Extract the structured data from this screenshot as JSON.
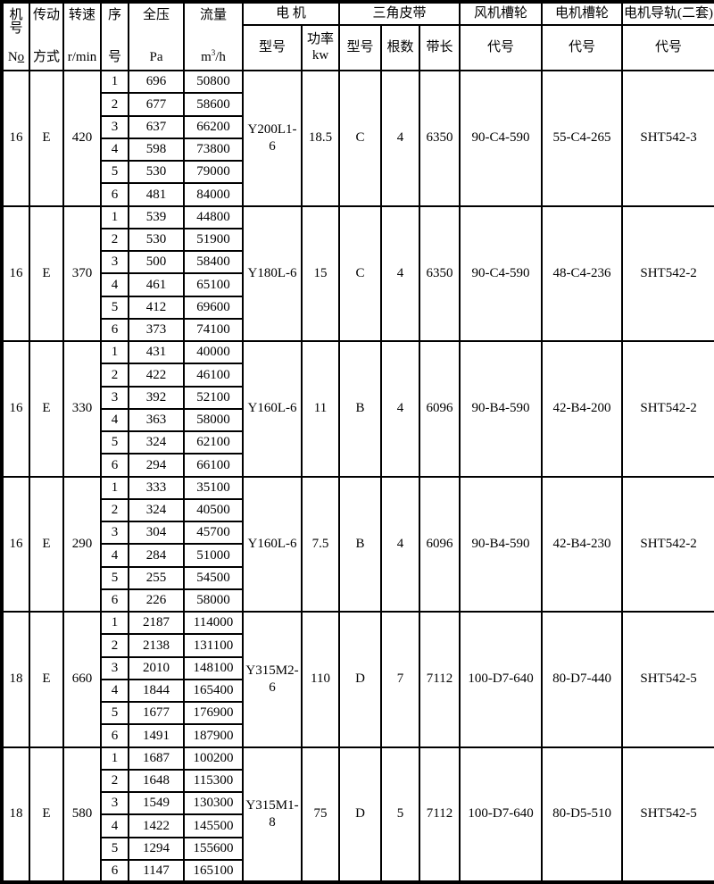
{
  "header": {
    "machine_no": {
      "line1": "机号",
      "line2_n": "N",
      "line2_o": "o"
    },
    "drive": {
      "line1": "传动",
      "line2": "方式"
    },
    "speed": {
      "line1": "转速",
      "line2": "r/min"
    },
    "seq": {
      "line1": "序",
      "line2": "号"
    },
    "pressure": {
      "line1": "全压",
      "line2": "Pa"
    },
    "flow": {
      "line1": "流量",
      "unit_base": "m",
      "unit_sup": "3",
      "unit_rest": "/h"
    },
    "group_motor": "电 机",
    "motor_model": "型号",
    "motor_power_line1": "功率",
    "motor_power_line2": "kw",
    "group_belt": "三角皮带",
    "belt_model": "型号",
    "belt_count": "根数",
    "belt_length": "带长",
    "group_fan_pulley": "风机槽轮",
    "fan_pulley_code": "代号",
    "group_motor_pulley": "电机槽轮",
    "motor_pulley_code": "代号",
    "group_rail": "电机导轨(二套)",
    "rail_code": "代号"
  },
  "blocks": [
    {
      "machine_no": "16",
      "drive": "E",
      "speed": "420",
      "rows": [
        {
          "seq": "1",
          "pressure": "696",
          "flow": "50800"
        },
        {
          "seq": "2",
          "pressure": "677",
          "flow": "58600"
        },
        {
          "seq": "3",
          "pressure": "637",
          "flow": "66200"
        },
        {
          "seq": "4",
          "pressure": "598",
          "flow": "73800"
        },
        {
          "seq": "5",
          "pressure": "530",
          "flow": "79000"
        },
        {
          "seq": "6",
          "pressure": "481",
          "flow": "84000"
        }
      ],
      "motor_model": "Y200L1-6",
      "power": "18.5",
      "belt_model": "C",
      "belt_count": "4",
      "belt_length": "6350",
      "fan_pulley": "90-C4-590",
      "motor_pulley": "55-C4-265",
      "rail": "SHT542-3"
    },
    {
      "machine_no": "16",
      "drive": "E",
      "speed": "370",
      "rows": [
        {
          "seq": "1",
          "pressure": "539",
          "flow": "44800"
        },
        {
          "seq": "2",
          "pressure": "530",
          "flow": "51900"
        },
        {
          "seq": "3",
          "pressure": "500",
          "flow": "58400"
        },
        {
          "seq": "4",
          "pressure": "461",
          "flow": "65100"
        },
        {
          "seq": "5",
          "pressure": "412",
          "flow": "69600"
        },
        {
          "seq": "6",
          "pressure": "373",
          "flow": "74100"
        }
      ],
      "motor_model": "Y180L-6",
      "power": "15",
      "belt_model": "C",
      "belt_count": "4",
      "belt_length": "6350",
      "fan_pulley": "90-C4-590",
      "motor_pulley": "48-C4-236",
      "rail": "SHT542-2"
    },
    {
      "machine_no": "16",
      "drive": "E",
      "speed": "330",
      "rows": [
        {
          "seq": "1",
          "pressure": "431",
          "flow": "40000"
        },
        {
          "seq": "2",
          "pressure": "422",
          "flow": "46100"
        },
        {
          "seq": "3",
          "pressure": "392",
          "flow": "52100"
        },
        {
          "seq": "4",
          "pressure": "363",
          "flow": "58000"
        },
        {
          "seq": "5",
          "pressure": "324",
          "flow": "62100"
        },
        {
          "seq": "6",
          "pressure": "294",
          "flow": "66100"
        }
      ],
      "motor_model": "Y160L-6",
      "power": "11",
      "belt_model": "B",
      "belt_count": "4",
      "belt_length": "6096",
      "fan_pulley": "90-B4-590",
      "motor_pulley": "42-B4-200",
      "rail": "SHT542-2"
    },
    {
      "machine_no": "16",
      "drive": "E",
      "speed": "290",
      "rows": [
        {
          "seq": "1",
          "pressure": "333",
          "flow": "35100"
        },
        {
          "seq": "2",
          "pressure": "324",
          "flow": "40500"
        },
        {
          "seq": "3",
          "pressure": "304",
          "flow": "45700"
        },
        {
          "seq": "4",
          "pressure": "284",
          "flow": "51000"
        },
        {
          "seq": "5",
          "pressure": "255",
          "flow": "54500"
        },
        {
          "seq": "6",
          "pressure": "226",
          "flow": "58000"
        }
      ],
      "motor_model": "Y160L-6",
      "power": "7.5",
      "belt_model": "B",
      "belt_count": "4",
      "belt_length": "6096",
      "fan_pulley": "90-B4-590",
      "motor_pulley": "42-B4-230",
      "rail": "SHT542-2"
    },
    {
      "machine_no": "18",
      "drive": "E",
      "speed": "660",
      "rows": [
        {
          "seq": "1",
          "pressure": "2187",
          "flow": "114000"
        },
        {
          "seq": "2",
          "pressure": "2138",
          "flow": "131100"
        },
        {
          "seq": "3",
          "pressure": "2010",
          "flow": "148100"
        },
        {
          "seq": "4",
          "pressure": "1844",
          "flow": "165400"
        },
        {
          "seq": "5",
          "pressure": "1677",
          "flow": "176900"
        },
        {
          "seq": "6",
          "pressure": "1491",
          "flow": "187900"
        }
      ],
      "motor_model": "Y315M2-6",
      "power": "110",
      "belt_model": "D",
      "belt_count": "7",
      "belt_length": "7112",
      "fan_pulley": "100-D7-640",
      "motor_pulley": "80-D7-440",
      "rail": "SHT542-5"
    },
    {
      "machine_no": "18",
      "drive": "E",
      "speed": "580",
      "rows": [
        {
          "seq": "1",
          "pressure": "1687",
          "flow": "100200"
        },
        {
          "seq": "2",
          "pressure": "1648",
          "flow": "115300"
        },
        {
          "seq": "3",
          "pressure": "1549",
          "flow": "130300"
        },
        {
          "seq": "4",
          "pressure": "1422",
          "flow": "145500"
        },
        {
          "seq": "5",
          "pressure": "1294",
          "flow": "155600"
        },
        {
          "seq": "6",
          "pressure": "1147",
          "flow": "165100"
        }
      ],
      "motor_model": "Y315M1-8",
      "power": "75",
      "belt_model": "D",
      "belt_count": "5",
      "belt_length": "7112",
      "fan_pulley": "100-D7-640",
      "motor_pulley": "80-D5-510",
      "rail": "SHT542-5"
    }
  ]
}
